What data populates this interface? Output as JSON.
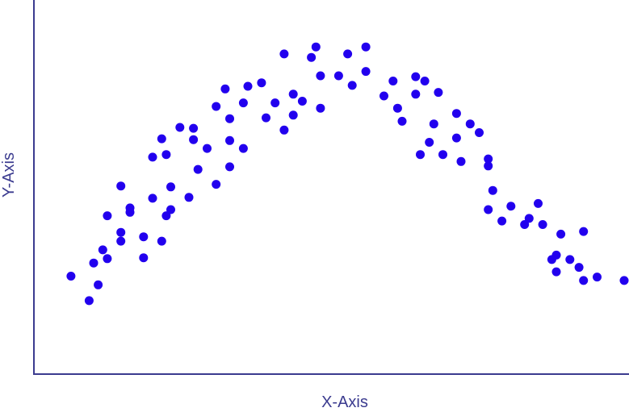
{
  "colors": {
    "axis": "#3b3b8f",
    "point": "#2200ee",
    "label": "#3b3b8f",
    "background": "#ffffff"
  },
  "chart_data": {
    "type": "scatter",
    "title": "",
    "xlabel": "X-Axis",
    "ylabel": "Y-Axis",
    "xlim": [
      0,
      64
    ],
    "ylim": [
      0,
      40
    ],
    "grid": false,
    "legend": "none",
    "ticks_shown": false,
    "series": [
      {
        "points": [
          [
            4,
            11.2
          ],
          [
            6,
            8.4
          ],
          [
            6.5,
            12.7
          ],
          [
            7,
            10.2
          ],
          [
            7.5,
            14.2
          ],
          [
            8,
            13.2
          ],
          [
            8,
            18.1
          ],
          [
            9.5,
            16.2
          ],
          [
            9.5,
            15.2
          ],
          [
            9.5,
            21.5
          ],
          [
            10.5,
            19.0
          ],
          [
            10.5,
            18.5
          ],
          [
            12,
            13.3
          ],
          [
            12,
            15.7
          ],
          [
            13,
            24.8
          ],
          [
            13,
            20.1
          ],
          [
            14,
            26.9
          ],
          [
            14,
            15.2
          ],
          [
            14.5,
            25.1
          ],
          [
            14.5,
            18.1
          ],
          [
            15,
            18.8
          ],
          [
            15,
            21.4
          ],
          [
            16,
            28.2
          ],
          [
            17,
            20.2
          ],
          [
            17.5,
            28.1
          ],
          [
            17.5,
            26.8
          ],
          [
            18,
            23.4
          ],
          [
            19,
            25.8
          ],
          [
            20,
            30.6
          ],
          [
            20,
            21.7
          ],
          [
            21,
            32.6
          ],
          [
            21.5,
            23.7
          ],
          [
            21.5,
            26.7
          ],
          [
            21.5,
            29.2
          ],
          [
            23,
            25.8
          ],
          [
            23,
            31.0
          ],
          [
            23.5,
            32.9
          ],
          [
            25,
            33.3
          ],
          [
            25.5,
            29.3
          ],
          [
            26.5,
            31.0
          ],
          [
            27.5,
            27.9
          ],
          [
            27.5,
            36.6
          ],
          [
            28.5,
            29.6
          ],
          [
            28.5,
            32.0
          ],
          [
            29.5,
            31.2
          ],
          [
            30.5,
            36.2
          ],
          [
            31,
            37.4
          ],
          [
            31.5,
            34.1
          ],
          [
            31.5,
            30.4
          ],
          [
            33.5,
            34.1
          ],
          [
            34.5,
            36.6
          ],
          [
            35,
            33.0
          ],
          [
            36.5,
            37.4
          ],
          [
            36.5,
            34.6
          ],
          [
            38.5,
            31.8
          ],
          [
            39.5,
            33.5
          ],
          [
            40,
            30.4
          ],
          [
            40.5,
            28.9
          ],
          [
            42,
            34.0
          ],
          [
            42,
            32.0
          ],
          [
            42.5,
            25.1
          ],
          [
            43,
            33.5
          ],
          [
            43.5,
            26.5
          ],
          [
            44,
            28.6
          ],
          [
            44.5,
            32.2
          ],
          [
            45,
            25.1
          ],
          [
            46.5,
            29.8
          ],
          [
            46.5,
            27.0
          ],
          [
            47,
            24.3
          ],
          [
            48,
            28.6
          ],
          [
            49,
            27.6
          ],
          [
            50,
            24.6
          ],
          [
            50,
            23.8
          ],
          [
            50.5,
            21.0
          ],
          [
            50,
            18.8
          ],
          [
            51.5,
            17.5
          ],
          [
            52.5,
            19.2
          ],
          [
            54,
            17.1
          ],
          [
            54.5,
            17.8
          ],
          [
            55.5,
            19.5
          ],
          [
            56,
            17.1
          ],
          [
            57,
            13.1
          ],
          [
            57.5,
            11.7
          ],
          [
            57.5,
            13.6
          ],
          [
            58,
            16.0
          ],
          [
            59,
            13.1
          ],
          [
            60,
            12.2
          ],
          [
            60.5,
            16.3
          ],
          [
            60.5,
            10.7
          ],
          [
            62,
            11.1
          ],
          [
            65.5,
            10.7
          ]
        ]
      }
    ]
  }
}
